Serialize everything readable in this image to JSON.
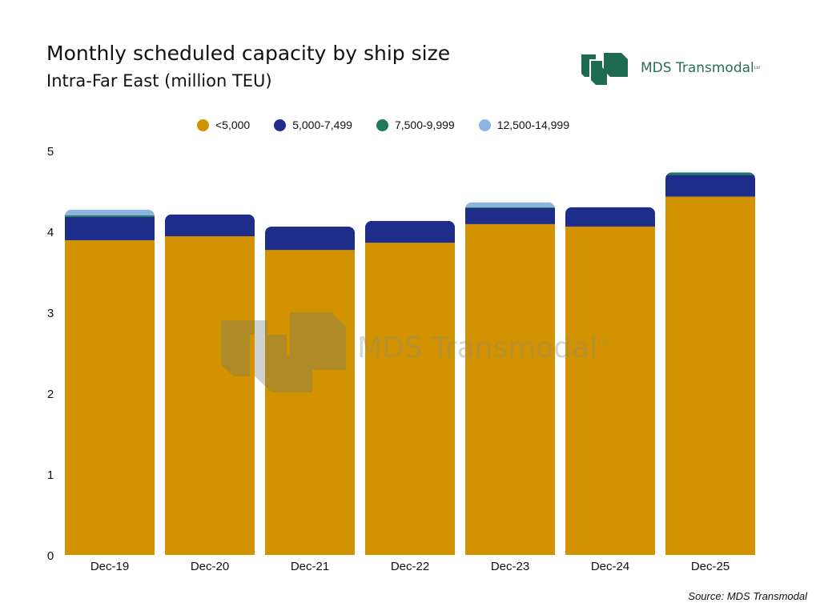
{
  "title": "Monthly scheduled capacity by ship size",
  "subtitle": "Intra-Far East (million TEU)",
  "logo": {
    "text": "MDS Transmodal",
    "suffix": "Ltd",
    "color": "#1E6B52"
  },
  "watermark": {
    "text": "MDS Transmodal",
    "suffix": "Ltd"
  },
  "source": "Source: MDS Transmodal",
  "chart_data": {
    "type": "bar",
    "stacked": true,
    "title": "Monthly scheduled capacity by ship size",
    "subtitle": "Intra-Far East (million TEU)",
    "xlabel": "",
    "ylabel": "",
    "ylim": [
      0,
      5
    ],
    "yticks": [
      "0",
      "1",
      "2",
      "3",
      "4",
      "5"
    ],
    "grid": false,
    "legend_position": "top",
    "categories": [
      "Dec-19",
      "Dec-20",
      "Dec-21",
      "Dec-22",
      "Dec-23",
      "Dec-24",
      "Dec-25"
    ],
    "series": [
      {
        "name": "<5,000",
        "color": "#D39200",
        "values": [
          3.89,
          3.94,
          3.77,
          3.86,
          4.09,
          4.06,
          4.43
        ]
      },
      {
        "name": "5,000-7,499",
        "color": "#1E2C8A",
        "values": [
          0.29,
          0.27,
          0.29,
          0.27,
          0.2,
          0.24,
          0.27
        ]
      },
      {
        "name": "7,500-9,999",
        "color": "#1E7A5E",
        "values": [
          0.02,
          0,
          0,
          0,
          0.01,
          0,
          0.03
        ]
      },
      {
        "name": "12,500-14,999",
        "color": "#8FB3E0",
        "values": [
          0.07,
          0,
          0,
          0,
          0.06,
          0,
          0
        ]
      }
    ]
  }
}
